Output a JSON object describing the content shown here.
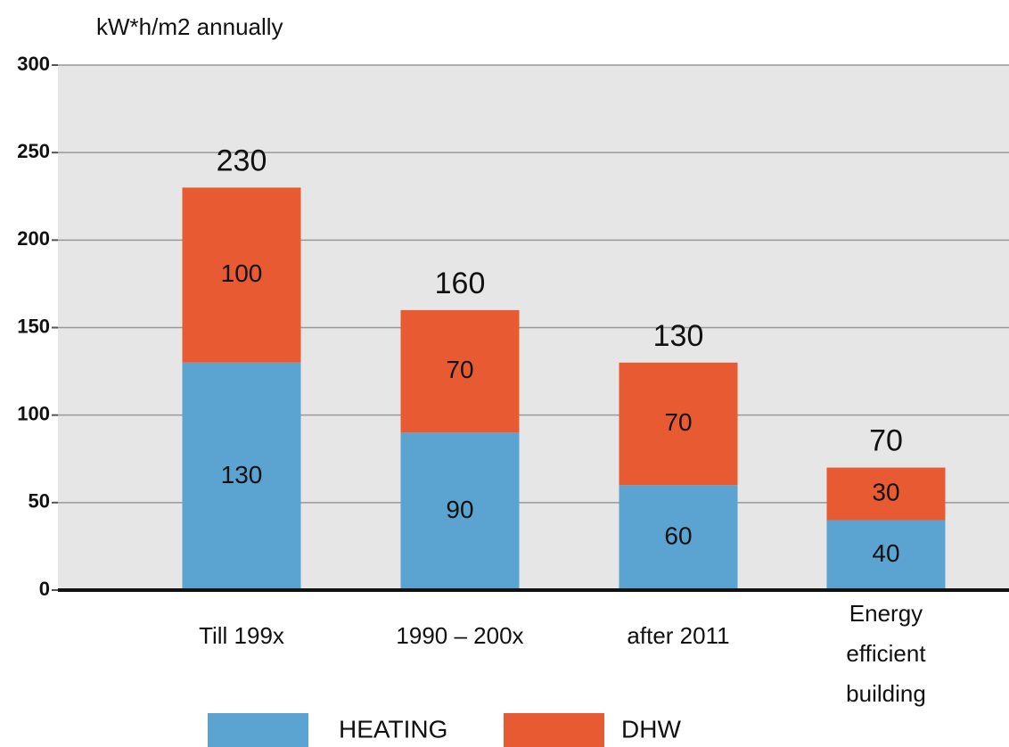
{
  "chart_data": {
    "type": "stacked_bar",
    "y_label": "kW*h/m2 annually",
    "categories": [
      "Till 199x",
      "1990 – 200x",
      "after 2011",
      "Energy\nefficient\nbuilding"
    ],
    "series": [
      {
        "name": "HEATING",
        "color": "#5ba3d0",
        "values": [
          130,
          90,
          60,
          40
        ]
      },
      {
        "name": "DHW",
        "color": "#e85a32",
        "values": [
          100,
          70,
          70,
          30
        ]
      }
    ],
    "totals": [
      230,
      160,
      130,
      70
    ],
    "ylim": [
      0,
      300
    ],
    "yticks": [
      0,
      50,
      100,
      150,
      200,
      250,
      300
    ],
    "grid": true
  }
}
